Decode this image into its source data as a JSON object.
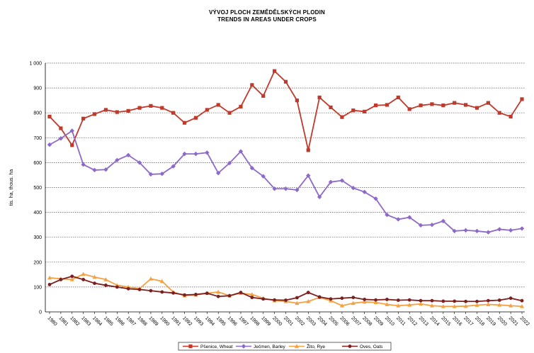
{
  "header": {
    "title_cz": "VÝVOJ PLOCH ZEMĚDĚLSKÝCH  PLODIN",
    "title_en": "TRENDS IN AREAS UNDER CROPS"
  },
  "chart_data": {
    "type": "line",
    "title": "VÝVOJ PLOCH ZEMĚDĚLSKÝCH  PLODIN / TRENDS IN AREAS UNDER CROPS",
    "ylabel": "tis. ha,  thous. ha",
    "xlabel": "",
    "ylim": [
      0,
      1000
    ],
    "yticks": [
      0,
      100,
      200,
      300,
      400,
      500,
      600,
      700,
      800,
      900,
      1000
    ],
    "ytick_labels": [
      "0",
      "100",
      "200",
      "300",
      "400",
      "500",
      "600",
      "700",
      "800",
      "900",
      "1 000"
    ],
    "grid": "horizontal dotted",
    "legend_position": "bottom",
    "x": [
      "1980",
      "1981",
      "1982",
      "1983",
      "1984",
      "1985",
      "1986",
      "1987",
      "1988",
      "1989",
      "1990",
      "1991",
      "1992",
      "1993",
      "1994",
      "1995",
      "1996",
      "1997",
      "1998",
      "1999",
      "2000",
      "2001",
      "2002",
      "2003",
      "2004",
      "2005",
      "2006",
      "2007",
      "2008",
      "2009",
      "2010",
      "2011",
      "2012",
      "2013",
      "2014",
      "2015",
      "2016",
      "2017",
      "2018",
      "2019",
      "2020",
      "2021",
      "2022"
    ],
    "series": [
      {
        "name": "Pšenice, Wheat",
        "color": "#c0392b",
        "marker": "square",
        "values": [
          785,
          738,
          670,
          777,
          795,
          812,
          803,
          808,
          820,
          828,
          820,
          800,
          760,
          780,
          812,
          832,
          800,
          825,
          912,
          868,
          968,
          925,
          850,
          650,
          862,
          822,
          783,
          810,
          805,
          830,
          832,
          862,
          815,
          830,
          835,
          830,
          840,
          832,
          820,
          840,
          800,
          785,
          855
        ]
      },
      {
        "name": "Ječmen, Barley",
        "color": "#8e6ac8",
        "marker": "diamond",
        "values": [
          672,
          697,
          728,
          592,
          570,
          572,
          610,
          630,
          600,
          553,
          555,
          585,
          635,
          635,
          640,
          558,
          598,
          645,
          578,
          545,
          495,
          495,
          490,
          548,
          462,
          522,
          528,
          498,
          482,
          455,
          390,
          372,
          380,
          348,
          350,
          365,
          325,
          328,
          325,
          320,
          332,
          328,
          335
        ]
      },
      {
        "name": "Žito, Rye",
        "color": "#f5a142",
        "marker": "triangle",
        "values": [
          137,
          133,
          130,
          152,
          140,
          130,
          107,
          100,
          93,
          133,
          123,
          80,
          65,
          68,
          75,
          80,
          65,
          75,
          70,
          55,
          45,
          42,
          35,
          42,
          58,
          45,
          25,
          35,
          40,
          38,
          30,
          25,
          28,
          32,
          25,
          22,
          22,
          23,
          27,
          30,
          28,
          25,
          22
        ]
      },
      {
        "name": "Oves, Oats",
        "color": "#7b1f1f",
        "marker": "circle",
        "values": [
          110,
          130,
          143,
          130,
          115,
          107,
          100,
          93,
          90,
          85,
          80,
          76,
          68,
          70,
          75,
          62,
          65,
          78,
          58,
          52,
          48,
          47,
          57,
          78,
          60,
          52,
          55,
          58,
          50,
          48,
          50,
          47,
          48,
          45,
          45,
          43,
          43,
          42,
          42,
          45,
          47,
          55,
          45
        ]
      }
    ]
  }
}
